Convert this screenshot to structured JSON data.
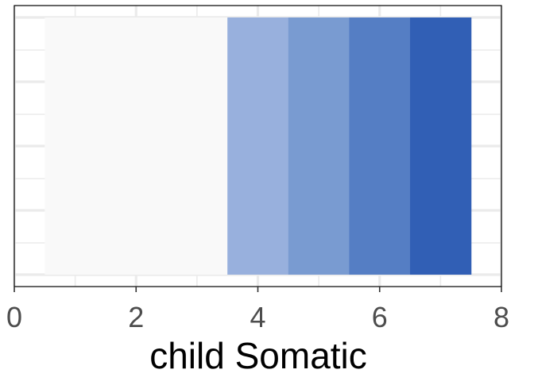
{
  "chart_data": {
    "type": "bar",
    "xlabel": "child Somatic",
    "ylabel": "",
    "xlim": [
      0,
      8
    ],
    "x_ticks": [
      0,
      2,
      4,
      6,
      8
    ],
    "grid": true,
    "bars": [
      {
        "x": 1,
        "value": 1
      },
      {
        "x": 2,
        "value": 1
      },
      {
        "x": 3,
        "value": 1
      },
      {
        "x": 4,
        "value": 1
      },
      {
        "x": 5,
        "value": 1
      },
      {
        "x": 6,
        "value": 1
      },
      {
        "x": 7,
        "value": 1
      }
    ],
    "colors": [
      "#f9f9f9",
      "#f9f9f9",
      "#f9f9f9",
      "#98b0dd",
      "#799bd1",
      "#557ec4",
      "#315fb5"
    ],
    "grid_color": "#ebebeb",
    "axis_text_color": "#4d4d4d"
  }
}
